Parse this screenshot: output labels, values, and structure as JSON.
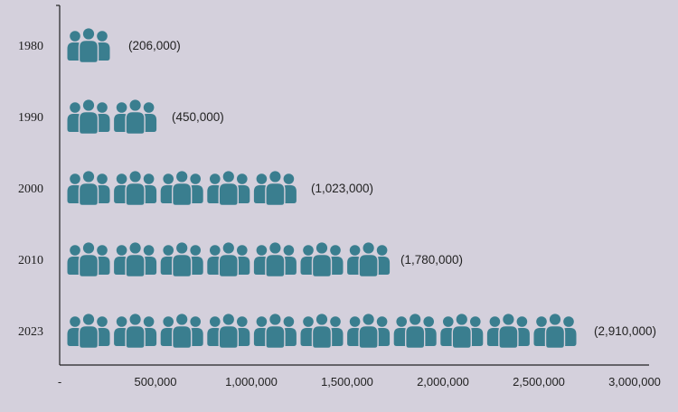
{
  "chart_data": {
    "type": "bar",
    "style": "pictograph",
    "icon": "people-group-icon",
    "categories": [
      "1980",
      "1990",
      "2000",
      "2010",
      "2023"
    ],
    "values": [
      206000,
      450000,
      1023000,
      1780000,
      2910000
    ],
    "value_labels": [
      "(206,000)",
      "(450,000)",
      "(1,023,000)",
      "(1,780,000)",
      "(2,910,000)"
    ],
    "icon_counts": [
      1,
      2,
      5,
      7,
      11
    ],
    "xlim": [
      0,
      3000000
    ],
    "x_ticks": [
      0,
      500000,
      1000000,
      1500000,
      2000000,
      2500000,
      3000000
    ],
    "x_tick_labels": [
      "-",
      "500,000",
      "1,000,000",
      "1,500,000",
      "2,000,000",
      "2,500,000",
      "3,000,000"
    ],
    "title": "",
    "xlabel": "",
    "ylabel": "",
    "grid": false,
    "colors": {
      "icon": "#3a7e8f",
      "background": "#d4d0dc",
      "axis": "#222222"
    }
  }
}
